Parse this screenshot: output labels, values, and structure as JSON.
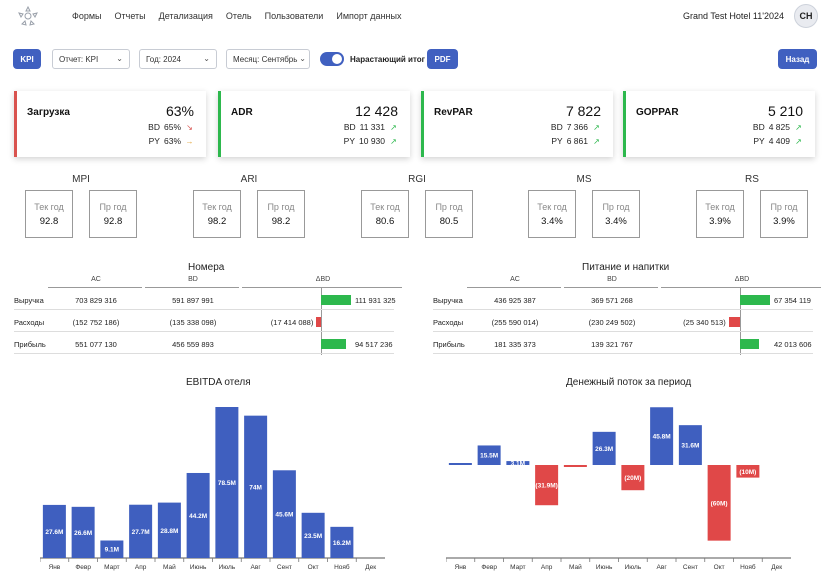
{
  "nav": {
    "items": [
      "Формы",
      "Отчеты",
      "Детализация",
      "Отель",
      "Пользователи",
      "Импорт данных"
    ],
    "hotel": "Grand Test Hotel 11'2024",
    "avatar": "CH"
  },
  "toolbar": {
    "kpi_label": "KPI",
    "report": "Отчет: KPI",
    "year": "Год: 2024",
    "month": "Месяц: Сентябрь",
    "cumulative_label": "Нарастающий итог",
    "cumulative_on": true,
    "pdf_label": "PDF",
    "back_label": "Назад"
  },
  "kpis": [
    {
      "name": "Загрузка",
      "value": "63%",
      "bd_label": "BD",
      "bd": "65%",
      "bd_arrow": "↘",
      "py_label": "PY",
      "py": "63%",
      "py_arrow": "→",
      "accent": "#d9534f",
      "bd_color": "#d9534f",
      "py_color": "#e0a030"
    },
    {
      "name": "ADR",
      "value": "12 428",
      "bd_label": "BD",
      "bd": "11 331",
      "bd_arrow": "↗",
      "py_label": "PY",
      "py": "10 930",
      "py_arrow": "↗",
      "accent": "#2db84d",
      "bd_color": "#2db84d",
      "py_color": "#2db84d"
    },
    {
      "name": "RevPAR",
      "value": "7 822",
      "bd_label": "BD",
      "bd": "7 366",
      "bd_arrow": "↗",
      "py_label": "PY",
      "py": "6 861",
      "py_arrow": "↗",
      "accent": "#2db84d",
      "bd_color": "#2db84d",
      "py_color": "#2db84d"
    },
    {
      "name": "GOPPAR",
      "value": "5 210",
      "bd_label": "BD",
      "bd": "4 825",
      "bd_arrow": "↗",
      "py_label": "PY",
      "py": "4 409",
      "py_arrow": "↗",
      "accent": "#2db84d",
      "bd_color": "#2db84d",
      "py_color": "#2db84d"
    }
  ],
  "small_kpis": [
    {
      "title": "MPI",
      "cur_label": "Тек год",
      "cur": "92.8",
      "prev_label": "Пр год",
      "prev": "92.8"
    },
    {
      "title": "ARI",
      "cur_label": "Тек год",
      "cur": "98.2",
      "prev_label": "Пр год",
      "prev": "98.2"
    },
    {
      "title": "RGI",
      "cur_label": "Тек год",
      "cur": "80.6",
      "prev_label": "Пр год",
      "prev": "80.5"
    },
    {
      "title": "MS",
      "cur_label": "Тек год",
      "cur": "3.4%",
      "prev_label": "Пр год",
      "prev": "3.4%"
    },
    {
      "title": "RS",
      "cur_label": "Тек год",
      "cur": "3.9%",
      "prev_label": "Пр год",
      "prev": "3.9%"
    }
  ],
  "tables": [
    {
      "title": "Номера",
      "headers": [
        "AC",
        "BD",
        "ΔBD"
      ],
      "rows": [
        {
          "label": "Выручка",
          "ac": "703 829 316",
          "bd": "591 897 991",
          "delta": "111 931 325",
          "delta_value": 111931325
        },
        {
          "label": "Расходы",
          "ac": "(152 752 186)",
          "bd": "(135 338 098)",
          "delta": "(17 414 088)",
          "delta_value": -17414088
        },
        {
          "label": "Прибыль",
          "ac": "551 077 130",
          "bd": "456 559 893",
          "delta": "94 517 236",
          "delta_value": 94517236
        }
      ]
    },
    {
      "title": "Питание и напитки",
      "headers": [
        "AC",
        "BD",
        "ΔBD"
      ],
      "rows": [
        {
          "label": "Выручка",
          "ac": "436 925 387",
          "bd": "369 571 268",
          "delta": "67 354 119",
          "delta_value": 67354119
        },
        {
          "label": "Расходы",
          "ac": "(255 590 014)",
          "bd": "(230 249 502)",
          "delta": "(25 340 513)",
          "delta_value": -25340513
        },
        {
          "label": "Прибыль",
          "ac": "181 335 373",
          "bd": "139 321 767",
          "delta": "42 013 606",
          "delta_value": 42013606
        }
      ]
    }
  ],
  "colors": {
    "primary": "#4060c0",
    "green": "#2db84d",
    "red": "#e04848",
    "bar": "#3f5fbf"
  },
  "chart_data": [
    {
      "type": "bar",
      "title": "EBITDA отеля",
      "categories": [
        "Янв",
        "Февр",
        "Март",
        "Апр",
        "Май",
        "Июнь",
        "Июль",
        "Авг",
        "Сент",
        "Окт",
        "Нояб",
        "Дек"
      ],
      "values": [
        27.6,
        26.6,
        9.1,
        27.7,
        28.8,
        44.2,
        78.5,
        74,
        45.6,
        23.5,
        16.2,
        null
      ],
      "labels": [
        "27.6M",
        "26.6M",
        "9.1M",
        "27.7M",
        "28.8M",
        "44.2M",
        "78.5M",
        "74M",
        "45.6M",
        "23.5M",
        "16.2M",
        ""
      ],
      "unit": "M"
    },
    {
      "type": "bar",
      "title": "Денежный поток за период",
      "categories": [
        "Янв",
        "Февр",
        "Март",
        "Апр",
        "Май",
        "Июнь",
        "Июль",
        "Авг",
        "Сент",
        "Окт",
        "Нояб",
        "Дек"
      ],
      "values": [
        1.0,
        15.5,
        3.1,
        -31.9,
        -1.0,
        26.3,
        -20,
        45.8,
        31.6,
        -60,
        -10,
        null
      ],
      "labels": [
        "",
        "15.5M",
        "3.1M",
        "(31.9M)",
        "",
        "26.3M",
        "(20M)",
        "45.8M",
        "31.6M",
        "(60M)",
        "(10M)",
        ""
      ],
      "unit": "M"
    }
  ]
}
